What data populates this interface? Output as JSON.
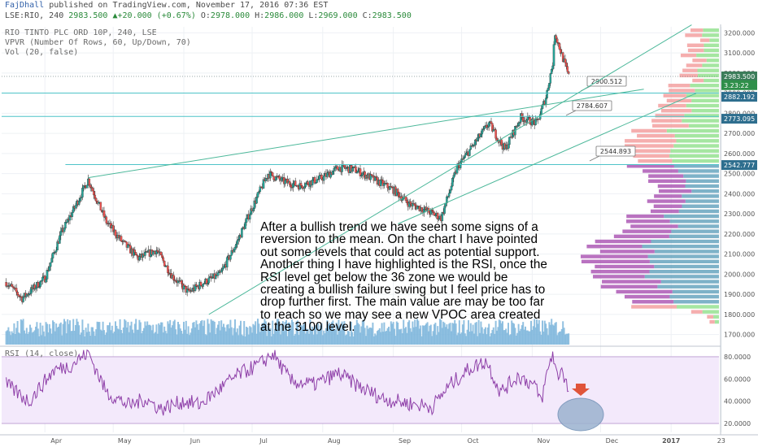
{
  "header": {
    "author": "FajDhall",
    "published_text": "published on TradingView.com, November 17, 2016 07:36 EST",
    "symbol": "LSE:RIO, 240",
    "price": "2983.500",
    "change": "+20.000 (+0.67%)",
    "ohlc": {
      "o_label": "O:",
      "o": "2978.000",
      "h_label": "H:",
      "h": "2986.000",
      "l_label": "L:",
      "l": "2969.000",
      "c_label": "C:",
      "c": "2983.500"
    },
    "up_color": "#2a8a3a"
  },
  "indicators": {
    "title": "RIO TINTO PLC ORD 10P, 240, LSE",
    "vpvr": "VPVR (Number Of Rows, 60, Up/Down, 70)",
    "vol": "Vol (20, false)",
    "rsi": "RSI (14, close)"
  },
  "annotation": "After a bullish trend we have seen some signs of a reversion to the mean. On the chart I have pointed out some levels that could act as potential support. Another thing I have highlighted is the RSI, once the RSI level get below the 36 zone we would be creating a bullish failure swing but I feel price has to drop further first.  The main value are may be too far to reach so we may see a new VPOC area created at the 3100 level.",
  "chart_data": {
    "type": "candlestick",
    "price_axis": {
      "ticks": [
        "3200.000",
        "3100.000",
        "3000.000",
        "2900.000",
        "2800.000",
        "2700.000",
        "2600.000",
        "2500.000",
        "2400.000",
        "2300.000",
        "2200.000",
        "2100.000",
        "2000.000",
        "1900.000",
        "1800.000",
        "1700.000"
      ],
      "range": [
        1650,
        3230
      ]
    },
    "time_axis": {
      "labels": [
        "Apr",
        "May",
        "Jun",
        "Jul",
        "Aug",
        "Sep",
        "Oct",
        "Nov",
        "Dec",
        "2017",
        "23"
      ]
    },
    "price_path": [
      [
        "Mar 15",
        1960
      ],
      [
        "Mar 22",
        1880
      ],
      [
        "Apr 1",
        1980
      ],
      [
        "Apr 8",
        2200
      ],
      [
        "Apr 14",
        2330
      ],
      [
        "Apr 20",
        2470
      ],
      [
        "Apr 28",
        2260
      ],
      [
        "May 5",
        2160
      ],
      [
        "May 12",
        2080
      ],
      [
        "May 20",
        2120
      ],
      [
        "May 27",
        1990
      ],
      [
        "Jun 3",
        1910
      ],
      [
        "Jun 10",
        1960
      ],
      [
        "Jun 17",
        2000
      ],
      [
        "Jun 24",
        2150
      ],
      [
        "Jul 1",
        2330
      ],
      [
        "Jul 8",
        2500
      ],
      [
        "Jul 15",
        2460
      ],
      [
        "Jul 22",
        2440
      ],
      [
        "Aug 1",
        2480
      ],
      [
        "Aug 8",
        2530
      ],
      [
        "Aug 15",
        2520
      ],
      [
        "Aug 22",
        2480
      ],
      [
        "Sep 1",
        2420
      ],
      [
        "Sep 8",
        2350
      ],
      [
        "Sep 15",
        2320
      ],
      [
        "Sep 22",
        2280
      ],
      [
        "Sep 29",
        2530
      ],
      [
        "Oct 6",
        2640
      ],
      [
        "Oct 13",
        2750
      ],
      [
        "Oct 20",
        2620
      ],
      [
        "Oct 27",
        2780
      ],
      [
        "Nov 3",
        2750
      ],
      [
        "Nov 7",
        2880
      ],
      [
        "Nov 10",
        3050
      ],
      [
        "Nov 11",
        3200
      ],
      [
        "Nov 14",
        3090
      ],
      [
        "Nov 17",
        2983.5
      ]
    ],
    "levels": [
      {
        "label": "2900.512",
        "value": 2900.512
      },
      {
        "label": "2784.607",
        "value": 2784.607
      },
      {
        "label": "2544.893",
        "value": 2544.893
      }
    ],
    "price_badges": [
      {
        "label": "2983.500",
        "value": 2983.5,
        "color": "#3c7d5a"
      },
      {
        "label": "3.23:22",
        "value": 2940,
        "color": "#2f8f4a"
      },
      {
        "label": "2882.192",
        "value": 2882.192,
        "color": "#2e6e8e"
      },
      {
        "label": "2773.095",
        "value": 2773.095,
        "color": "#2e6e8e"
      },
      {
        "label": "2542.777",
        "value": 2542.777,
        "color": "#2e6e8e"
      }
    ],
    "rsi": {
      "ticks": [
        "80.0000",
        "60.0000",
        "40.0000",
        "20.0000"
      ],
      "range": [
        12,
        88
      ],
      "band": [
        20,
        80
      ],
      "path": [
        [
          "Mar 15",
          55
        ],
        [
          "Mar 25",
          40
        ],
        [
          "Apr 5",
          68
        ],
        [
          "Apr 12",
          72
        ],
        [
          "Apr 20",
          84
        ],
        [
          "Apr 28",
          48
        ],
        [
          "May 8",
          36
        ],
        [
          "May 15",
          42
        ],
        [
          "May 22",
          33
        ],
        [
          "Jun 1",
          40
        ],
        [
          "Jun 8",
          37
        ],
        [
          "Jun 16",
          50
        ],
        [
          "Jun 25",
          64
        ],
        [
          "Jul 5",
          74
        ],
        [
          "Jul 10",
          83
        ],
        [
          "Jul 18",
          58
        ],
        [
          "Jul 28",
          55
        ],
        [
          "Aug 8",
          65
        ],
        [
          "Aug 18",
          52
        ],
        [
          "Aug 28",
          42
        ],
        [
          "Sep 8",
          38
        ],
        [
          "Sep 18",
          35
        ],
        [
          "Sep 26",
          55
        ],
        [
          "Oct 5",
          70
        ],
        [
          "Oct 12",
          76
        ],
        [
          "Oct 18",
          48
        ],
        [
          "Oct 26",
          63
        ],
        [
          "Nov 2",
          54
        ],
        [
          "Nov 5",
          40
        ],
        [
          "Nov 8",
          70
        ],
        [
          "Nov 10",
          83
        ],
        [
          "Nov 12",
          62
        ],
        [
          "Nov 14",
          70
        ],
        [
          "Nov 17",
          49
        ]
      ]
    },
    "colors": {
      "up": "#26a69a",
      "down": "#ef5350",
      "rsi_line": "#8e3fa8",
      "rsi_band": "#f3e9fb",
      "level_line": "#4fc4c8",
      "trend_line": "#4cb89a",
      "volume": "#7fb6dc",
      "vp_up": "#8fe08a",
      "vp_down": "#f29a9a",
      "vp_up_value": "#5e9fba",
      "vp_down_value": "#a84fb0"
    }
  }
}
